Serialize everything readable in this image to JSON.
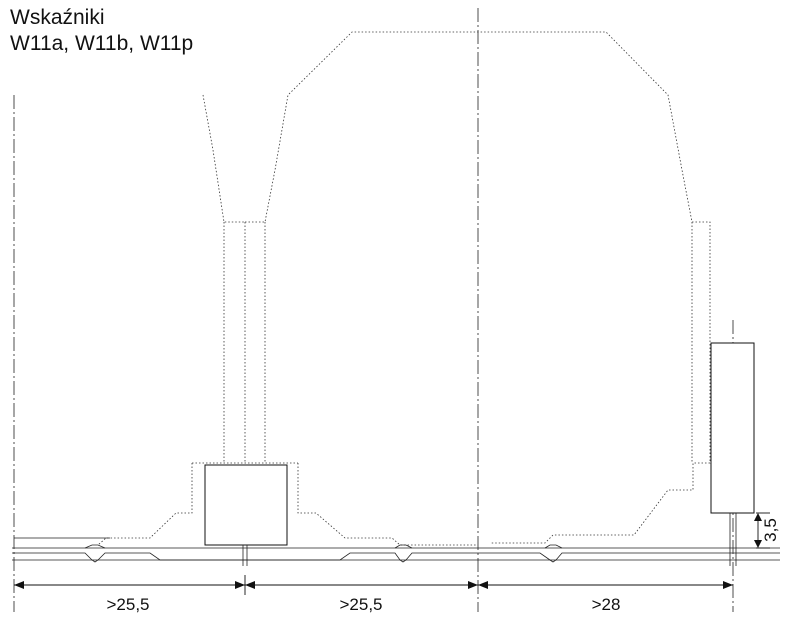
{
  "title": {
    "line1": "Wskaźniki",
    "line2": "W11a, W11b, W11p"
  },
  "dimensions": {
    "left_span": ">25,5",
    "middle_span": ">25,5",
    "right_span": ">28",
    "height": "3,5"
  }
}
